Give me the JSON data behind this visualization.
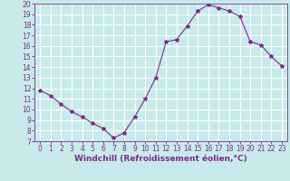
{
  "x": [
    0,
    1,
    2,
    3,
    4,
    5,
    6,
    7,
    8,
    9,
    10,
    11,
    12,
    13,
    14,
    15,
    16,
    17,
    18,
    19,
    20,
    21,
    22,
    23
  ],
  "y": [
    11.8,
    11.3,
    10.5,
    9.8,
    9.3,
    8.7,
    8.2,
    7.3,
    7.8,
    9.3,
    11.0,
    13.0,
    16.4,
    16.6,
    17.9,
    19.3,
    19.9,
    19.6,
    19.3,
    18.8,
    16.4,
    16.1,
    15.0,
    14.1
  ],
  "line_color": "#7b2d8b",
  "marker": "*",
  "marker_size": 3,
  "bg_color": "#c8eaea",
  "grid_color": "#ffffff",
  "xlabel": "Windchill (Refroidissement éolien,°C)",
  "ylim": [
    7,
    20
  ],
  "xlim": [
    -0.5,
    23.5
  ],
  "yticks": [
    7,
    8,
    9,
    10,
    11,
    12,
    13,
    14,
    15,
    16,
    17,
    18,
    19,
    20
  ],
  "xticks": [
    0,
    1,
    2,
    3,
    4,
    5,
    6,
    7,
    8,
    9,
    10,
    11,
    12,
    13,
    14,
    15,
    16,
    17,
    18,
    19,
    20,
    21,
    22,
    23
  ],
  "tick_color": "#7b2d8b",
  "label_color": "#7b2d8b",
  "label_fontsize": 6.5,
  "tick_fontsize": 5.5
}
